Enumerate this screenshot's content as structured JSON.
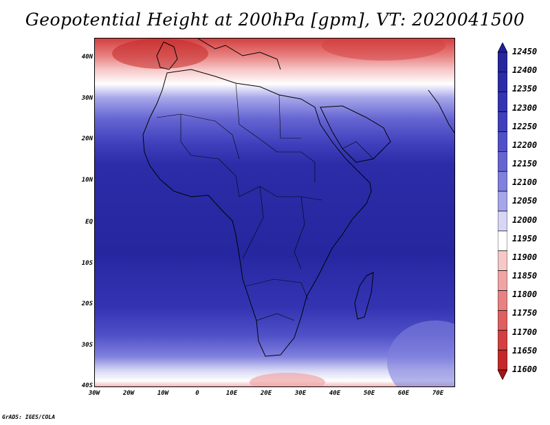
{
  "title": "Geopotential Height at 200hPa [gpm], VT: 2020041500",
  "credit": "GrADS: IGES/COLA",
  "map": {
    "lon_range": [
      -30,
      75
    ],
    "lat_range": [
      -40,
      45
    ],
    "y_ticks": [
      "40N",
      "30N",
      "20N",
      "10N",
      "EQ",
      "10S",
      "20S",
      "30S",
      "40S"
    ],
    "x_ticks": [
      "30W",
      "20W",
      "10W",
      "0",
      "10E",
      "20E",
      "30E",
      "40E",
      "50E",
      "60E",
      "70E"
    ]
  },
  "colorbar": {
    "labels": [
      "12450",
      "12400",
      "12350",
      "12300",
      "12250",
      "12200",
      "12150",
      "12100",
      "12050",
      "12000",
      "11950",
      "11900",
      "11850",
      "11800",
      "11750",
      "11700",
      "11650",
      "11600"
    ],
    "colors": [
      "#1f1f9e",
      "#26269f",
      "#2c2ca8",
      "#3434b3",
      "#4040bd",
      "#5050c8",
      "#6565d2",
      "#8080de",
      "#a6a6ea",
      "#d7d7f5",
      "#ffffff",
      "#f7c8c8",
      "#f0a5a5",
      "#e88282",
      "#df6060",
      "#d44040",
      "#c42828",
      "#a81414"
    ]
  }
}
